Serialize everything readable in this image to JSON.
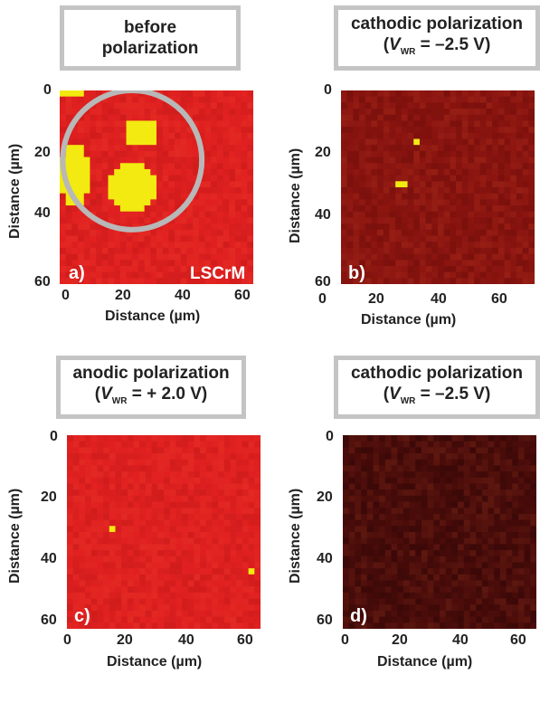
{
  "chart_data": [
    {
      "type": "heatmap",
      "panel_label": "a)",
      "title_line1": "before",
      "title_line2": "polarization",
      "annotation": "LSCrM",
      "xlabel": "Distance (µm)",
      "ylabel": "Distance (µm)",
      "xlim": [
        0,
        64
      ],
      "ylim": [
        0,
        64
      ],
      "xticks": [
        "0",
        "20",
        "40",
        "60"
      ],
      "yticks": [
        "0",
        "20",
        "40",
        "60"
      ],
      "base_color": "#e02020",
      "hot_color": "#f2ea10",
      "circle_color": "#b8b8b8",
      "hot_regions": [
        {
          "x": 5,
          "y": 28,
          "rx": 5,
          "ry": 10
        },
        {
          "x": 27,
          "y": 14,
          "rx": 6,
          "ry": 5
        },
        {
          "x": 24,
          "y": 32,
          "rx": 8,
          "ry": 8
        },
        {
          "x": 3,
          "y": 1,
          "rx": 5,
          "ry": 1
        }
      ],
      "circle": {
        "x": 24,
        "y": 23,
        "r": 23
      }
    },
    {
      "type": "heatmap",
      "panel_label": "b)",
      "title_line1": "cathodic polarization",
      "title_v": "V",
      "title_sub": "WR",
      "title_eq": " = –2.5 V)",
      "xlabel": "Distance (µm)",
      "ylabel": "Distance (µm)",
      "xlim": [
        0,
        64
      ],
      "ylim": [
        0,
        64
      ],
      "xticks": [
        "0",
        "20",
        "40",
        "60"
      ],
      "yticks": [
        "0",
        "20",
        "40",
        "60"
      ],
      "base_color": "#8a1410",
      "hot_color": "#f2ea10",
      "hot_regions": [
        {
          "x": 20,
          "y": 31,
          "rx": 2,
          "ry": 2
        },
        {
          "x": 25,
          "y": 17,
          "rx": 1,
          "ry": 1
        }
      ]
    },
    {
      "type": "heatmap",
      "panel_label": "c)",
      "title_line1": "anodic polarization",
      "title_v": "V",
      "title_sub": "WR",
      "title_eq": " = + 2.0 V)",
      "xlabel": "Distance (µm)",
      "ylabel": "Distance (µm)",
      "xlim": [
        0,
        64
      ],
      "ylim": [
        0,
        64
      ],
      "xticks": [
        "0",
        "20",
        "40",
        "60"
      ],
      "yticks": [
        "0",
        "20",
        "40",
        "60"
      ],
      "base_color": "#e02020",
      "hot_color": "#f2ea10",
      "hot_regions": [
        {
          "x": 15,
          "y": 31,
          "rx": 2,
          "ry": 2
        },
        {
          "x": 61,
          "y": 45,
          "rx": 2,
          "ry": 2
        },
        {
          "x": 18,
          "y": 15,
          "rx": 1,
          "ry": 1
        }
      ]
    },
    {
      "type": "heatmap",
      "panel_label": "d)",
      "title_line1": "cathodic polarization",
      "title_v": "V",
      "title_sub": "WR",
      "title_eq": " = –2.5 V)",
      "xlabel": "Distance (µm)",
      "ylabel": "Distance (µm)",
      "xlim": [
        0,
        64
      ],
      "ylim": [
        0,
        64
      ],
      "xticks": [
        "0",
        "20",
        "40",
        "60"
      ],
      "yticks": [
        "0",
        "20",
        "40",
        "60"
      ],
      "base_color": "#4a0c0a",
      "hot_color": "#d03020",
      "hot_regions": []
    }
  ]
}
